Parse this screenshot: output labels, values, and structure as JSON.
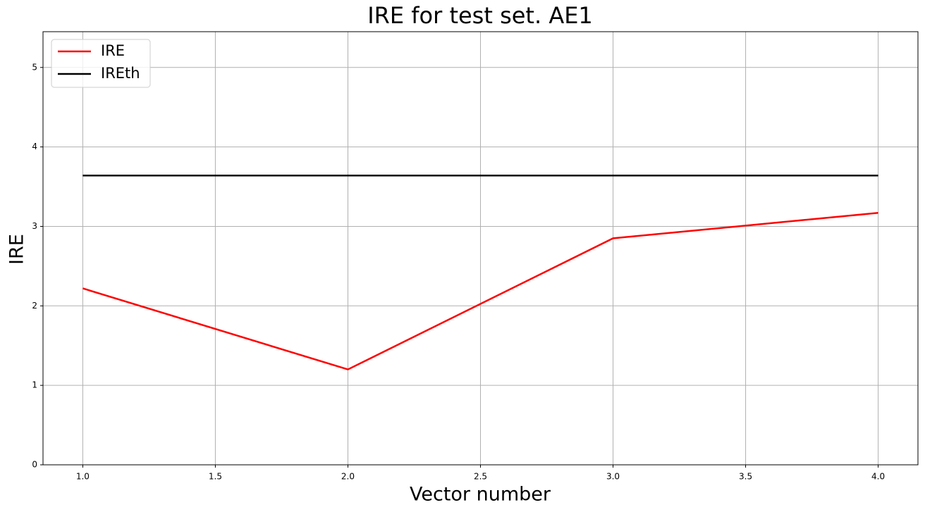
{
  "chart_data": {
    "type": "line",
    "title": "IRE for test set. AE1",
    "xlabel": "Vector number",
    "ylabel": "IRE",
    "x": [
      1,
      2,
      3,
      4
    ],
    "series": [
      {
        "name": "IRE",
        "color": "#ff0000",
        "values": [
          2.22,
          1.2,
          2.85,
          3.17
        ]
      },
      {
        "name": "IREth",
        "color": "#000000",
        "values": [
          3.64,
          3.64,
          3.64,
          3.64
        ]
      }
    ],
    "xlim": [
      0.85,
      4.15
    ],
    "ylim": [
      0,
      5.45
    ],
    "xticks": [
      {
        "value": 1,
        "label": "1.0"
      },
      1.5,
      {
        "value": 2,
        "label": "2.0"
      },
      2.5,
      {
        "value": 3,
        "label": "3.0"
      },
      3.5,
      {
        "value": 4,
        "label": "4.0"
      }
    ],
    "yticks": [
      0,
      1,
      2,
      3,
      4,
      5
    ],
    "grid": true,
    "legend": "upper-left"
  }
}
